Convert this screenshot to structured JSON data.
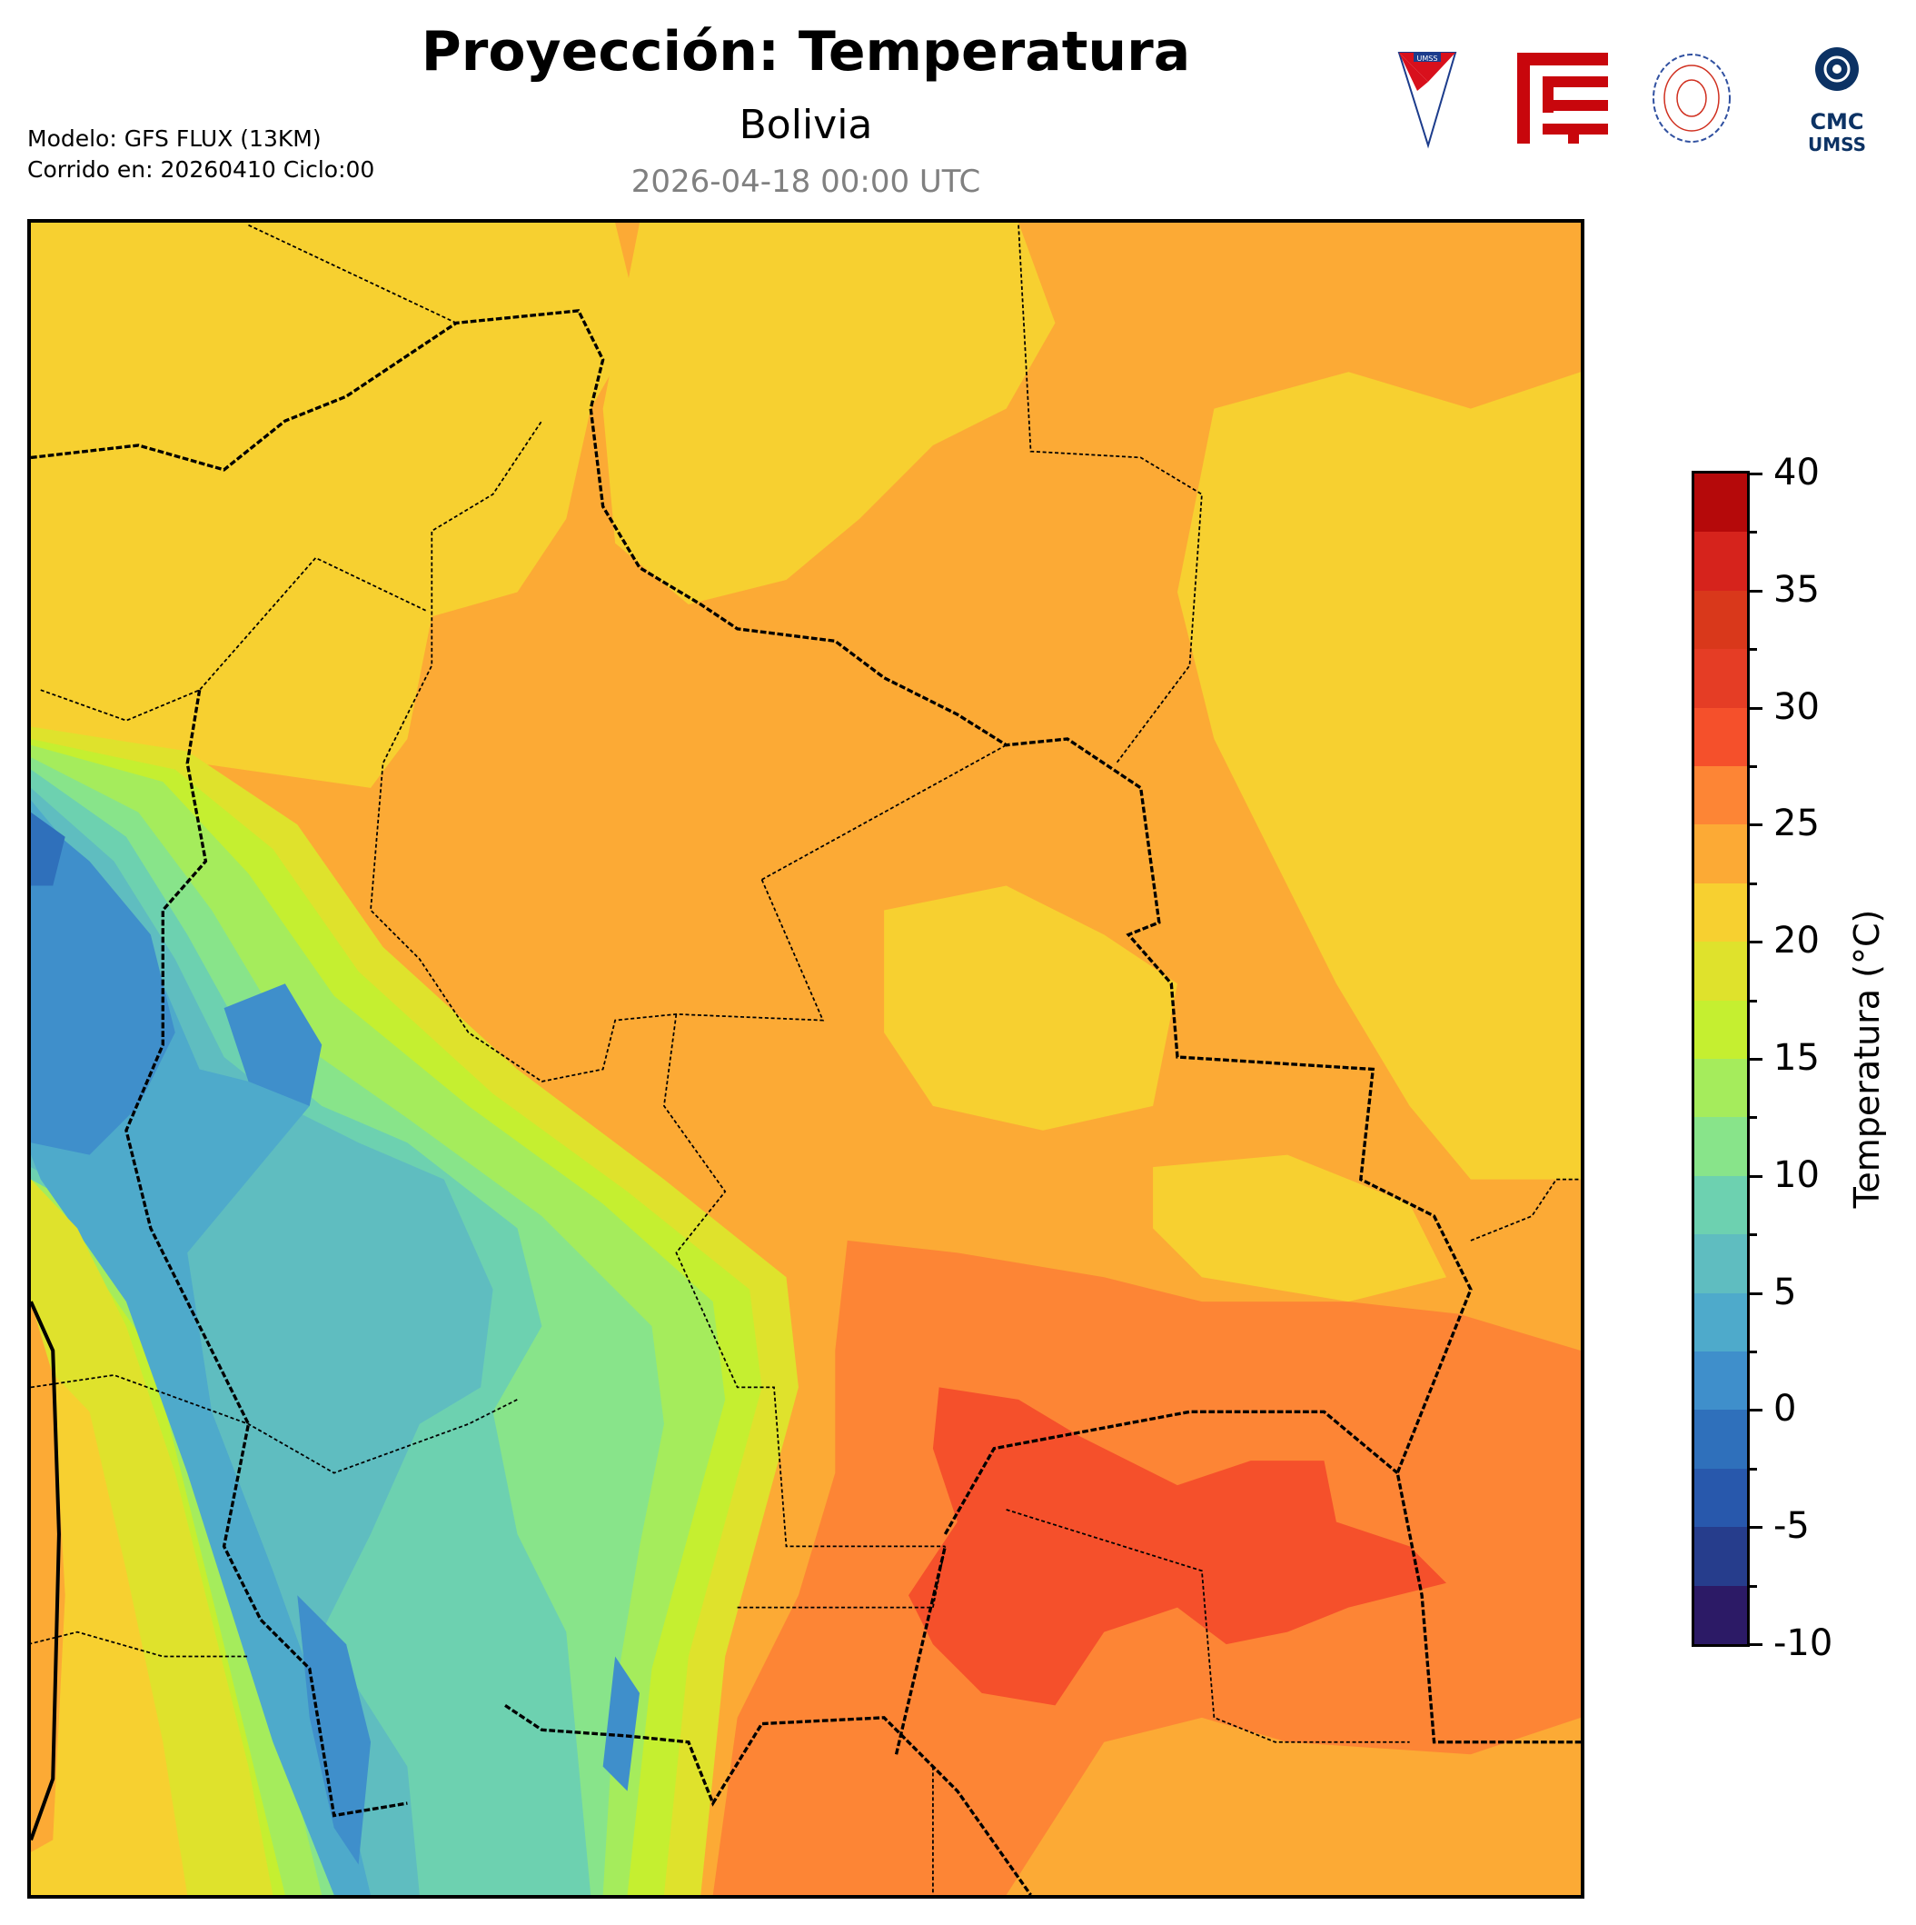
{
  "header": {
    "title": "Proyección: Temperatura",
    "region": "Bolivia",
    "valid_time": "2026-04-18 00:00 UTC",
    "model": "Modelo: GFS FLUX (13KM)",
    "run": "Corrido en: 20260410 Ciclo:00"
  },
  "logos": {
    "umss_shield": "UMSS",
    "cmc": "CMC",
    "cmc_sub": "UMSS"
  },
  "colorbar": {
    "label": "Temperatura (°C)",
    "min": -10,
    "max": 40,
    "step": 2.5,
    "tick_labels": [
      "-10",
      "-5",
      "0",
      "5",
      "10",
      "15",
      "20",
      "25",
      "30",
      "35",
      "40"
    ],
    "colors": [
      "#2c1a66",
      "#263d8c",
      "#2858ac",
      "#2f70bb",
      "#3f8fcb",
      "#4eaacb",
      "#5fbdc0",
      "#6dd1b0",
      "#88e48a",
      "#a5ec5c",
      "#c5ef30",
      "#dfe22c",
      "#f7d030",
      "#fcaa35",
      "#fd8535",
      "#f5502b",
      "#e53d25",
      "#d9381b",
      "#d6231c",
      "#b5090a"
    ]
  }
}
